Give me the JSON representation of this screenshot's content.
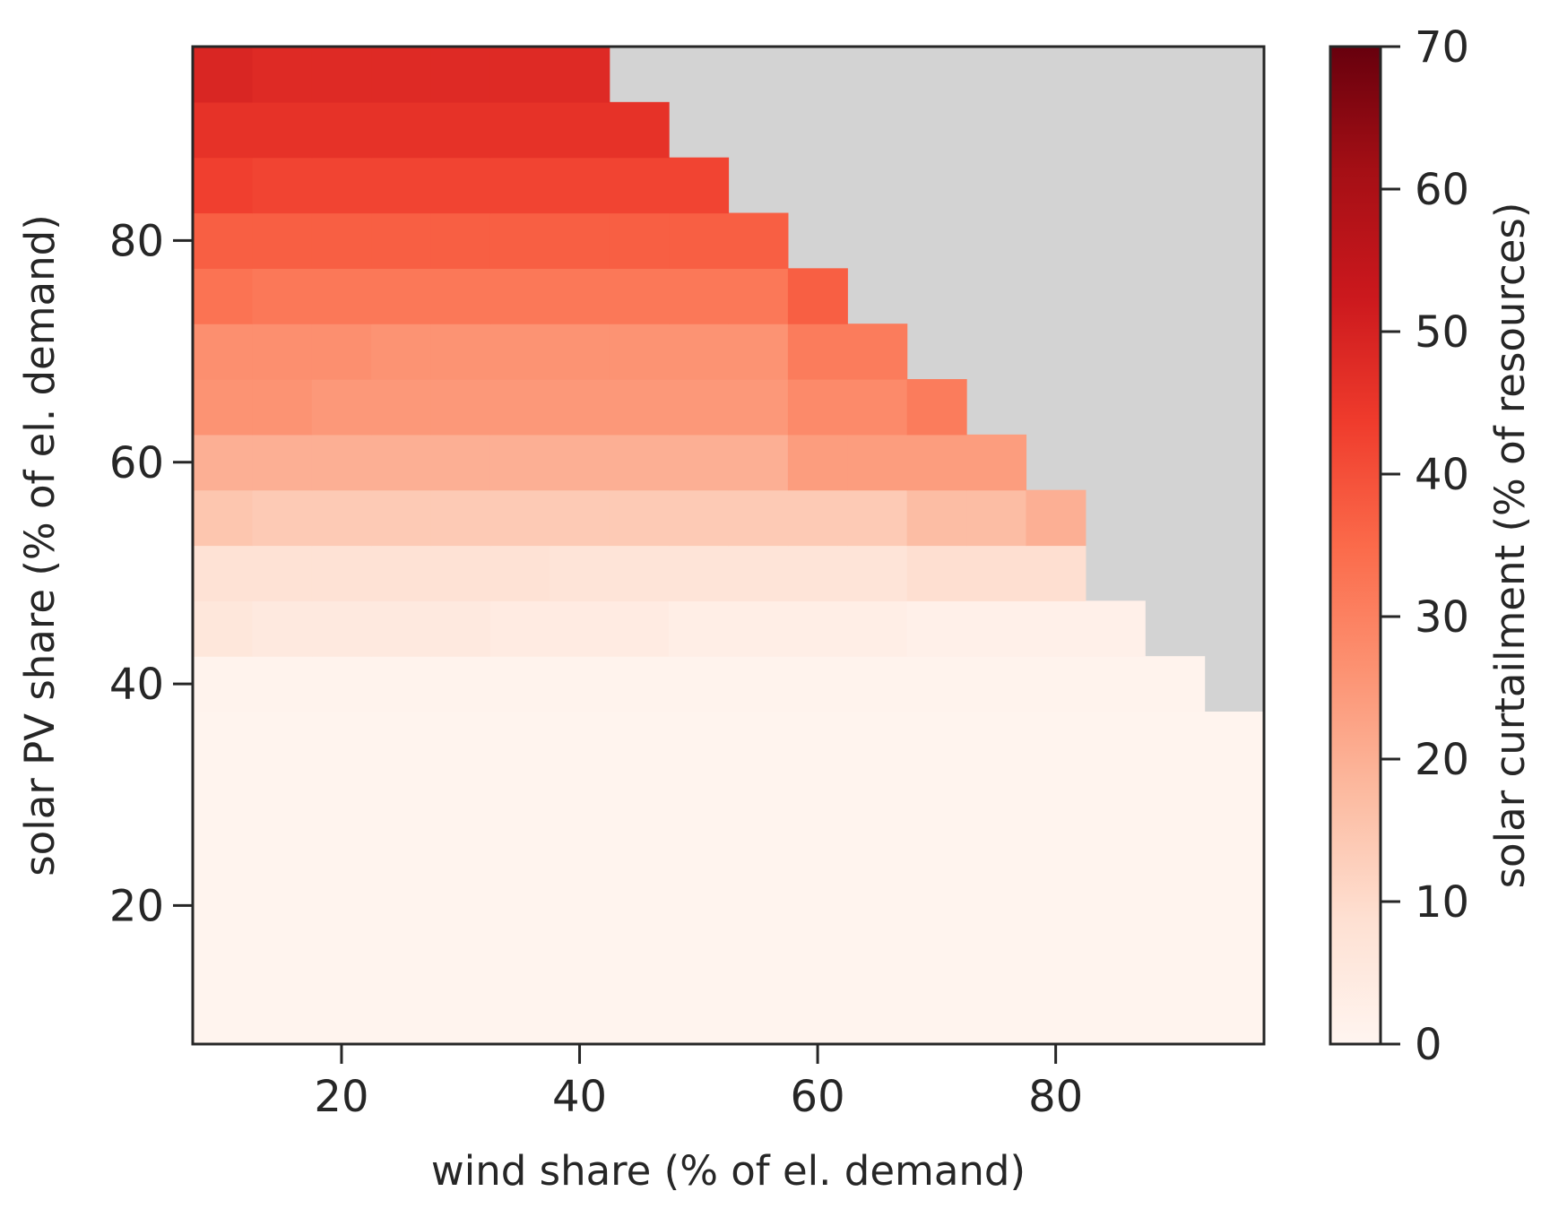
{
  "chart_data": {
    "type": "heatmap",
    "title": "",
    "xlabel": "wind share (% of el. demand)",
    "ylabel": "solar PV share (% of el. demand)",
    "colorbar_label": "solar curtailment (% of resources)",
    "x_ticks": [
      20,
      40,
      60,
      80
    ],
    "y_ticks": [
      20,
      40,
      60,
      80
    ],
    "colorbar_ticks": [
      0,
      10,
      20,
      30,
      40,
      50,
      60,
      70
    ],
    "xlim": [
      7.5,
      97.5
    ],
    "ylim": [
      7.5,
      97.5
    ],
    "vmin": 0,
    "vmax": 70,
    "colormap": "Reds",
    "missing_color": "#d3d3d3",
    "x": [
      10,
      15,
      20,
      25,
      30,
      35,
      40,
      45,
      50,
      55,
      60,
      65,
      70,
      75,
      80,
      85,
      90,
      95
    ],
    "y": [
      10,
      15,
      20,
      25,
      30,
      35,
      40,
      45,
      50,
      55,
      60,
      65,
      70,
      75,
      80,
      85,
      90,
      95
    ],
    "rows_note_y_descending": "values[i] corresponds to y[i]; null = no data",
    "values": [
      [
        0.5,
        0.5,
        0.5,
        0.5,
        0.5,
        0.5,
        0.5,
        0.5,
        0.5,
        0.5,
        0.5,
        0.5,
        0.5,
        0.5,
        0.5,
        0.5,
        0.5,
        0.5
      ],
      [
        0.5,
        0.5,
        0.5,
        0.5,
        0.5,
        0.5,
        0.5,
        0.5,
        0.5,
        0.5,
        0.5,
        0.5,
        0.5,
        0.5,
        0.5,
        0.5,
        0.5,
        0.5
      ],
      [
        0.5,
        0.5,
        0.5,
        0.5,
        0.5,
        0.5,
        0.5,
        0.5,
        0.5,
        0.5,
        0.5,
        0.5,
        0.5,
        0.5,
        0.5,
        0.5,
        0.5,
        0.5
      ],
      [
        0.5,
        0.5,
        0.5,
        0.5,
        0.5,
        0.5,
        0.5,
        0.5,
        0.5,
        0.5,
        0.5,
        0.5,
        0.5,
        0.5,
        0.5,
        0.5,
        0.5,
        0.5
      ],
      [
        0.5,
        0.5,
        0.5,
        0.5,
        0.5,
        0.5,
        0.5,
        0.5,
        0.5,
        0.5,
        0.5,
        0.5,
        0.5,
        0.5,
        0.5,
        0.5,
        0.5,
        0.5
      ],
      [
        0.6,
        0.6,
        0.6,
        0.6,
        0.6,
        0.6,
        0.6,
        0.6,
        0.6,
        0.6,
        0.6,
        0.6,
        0.6,
        0.6,
        0.6,
        0.6,
        0.6,
        0.6
      ],
      [
        1,
        1,
        1,
        1,
        1,
        1,
        1,
        1,
        1,
        1,
        1,
        1,
        1,
        1,
        1,
        1,
        1,
        null
      ],
      [
        6,
        5,
        5,
        5,
        5,
        4,
        4,
        4,
        3,
        3,
        3,
        3,
        2,
        2,
        2,
        2,
        null,
        null
      ],
      [
        8,
        8,
        8,
        8,
        8,
        8,
        7,
        7,
        7,
        7,
        7,
        7,
        9,
        9,
        9,
        null,
        null,
        null
      ],
      [
        15,
        14,
        14,
        14,
        14,
        14,
        14,
        14,
        14,
        14,
        14,
        14,
        17,
        17,
        20,
        null,
        null,
        null
      ],
      [
        20,
        20,
        20,
        20,
        20,
        20,
        20,
        20,
        20,
        20,
        24,
        24,
        24,
        24,
        null,
        null,
        null,
        null
      ],
      [
        26,
        26,
        25,
        25,
        25,
        25,
        25,
        25,
        25,
        25,
        28,
        28,
        31,
        null,
        null,
        null,
        null,
        null
      ],
      [
        27,
        27,
        27,
        26,
        26,
        26,
        26,
        26,
        26,
        26,
        31,
        31,
        null,
        null,
        null,
        null,
        null,
        null
      ],
      [
        33,
        32,
        32,
        32,
        32,
        32,
        32,
        32,
        32,
        32,
        37,
        null,
        null,
        null,
        null,
        null,
        null,
        null
      ],
      [
        37,
        37,
        37,
        37,
        37,
        37,
        37,
        37,
        37,
        37,
        null,
        null,
        null,
        null,
        null,
        null,
        null,
        null
      ],
      [
        43,
        42,
        42,
        42,
        42,
        42,
        42,
        42,
        42,
        null,
        null,
        null,
        null,
        null,
        null,
        null,
        null,
        null
      ],
      [
        46,
        46,
        46,
        46,
        46,
        46,
        46,
        46,
        null,
        null,
        null,
        null,
        null,
        null,
        null,
        null,
        null,
        null
      ],
      [
        49,
        48,
        48,
        48,
        48,
        48,
        48,
        null,
        null,
        null,
        null,
        null,
        null,
        null,
        null,
        null,
        null,
        null
      ]
    ]
  }
}
